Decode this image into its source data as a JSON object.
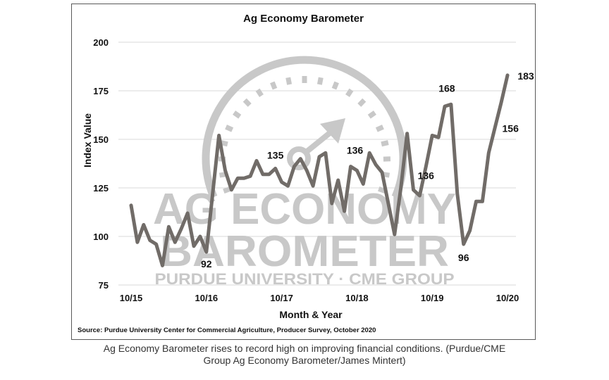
{
  "chart_data": {
    "type": "line",
    "title": "Ag Economy Barometer",
    "xlabel": "Month & Year",
    "ylabel": "Index Value",
    "ylim": [
      75,
      200
    ],
    "yticks": [
      75,
      100,
      125,
      150,
      175,
      200
    ],
    "xtick_labels": [
      "10/15",
      "10/16",
      "10/17",
      "10/18",
      "10/19",
      "10/20"
    ],
    "grid": true,
    "legend": null,
    "series": [
      {
        "name": "Ag Economy Barometer",
        "color": "#716c68",
        "x_start": "10/15",
        "x_end": "10/20",
        "frequency": "monthly",
        "values": [
          116,
          97,
          106,
          98,
          96,
          85,
          105,
          97,
          104,
          112,
          95,
          100,
          92,
          122,
          152,
          134,
          124,
          130,
          130,
          131,
          139,
          132,
          132,
          135,
          128,
          126,
          136,
          140,
          134,
          126,
          141,
          143,
          117,
          129,
          113,
          136,
          134,
          127,
          143,
          137,
          133,
          117,
          101,
          125,
          153,
          124,
          121,
          136,
          152,
          151,
          167,
          168,
          122,
          96,
          103,
          118,
          118,
          143,
          156,
          169,
          183
        ]
      }
    ],
    "annotations": [
      {
        "label": "92",
        "index": 12
      },
      {
        "label": "135",
        "index": 23
      },
      {
        "label": "136",
        "index": 35
      },
      {
        "label": "136",
        "index": 47
      },
      {
        "label": "168",
        "index": 51
      },
      {
        "label": "96",
        "index": 53
      },
      {
        "label": "156",
        "index": 58
      },
      {
        "label": "183",
        "index": 60
      }
    ],
    "watermark": {
      "line1": "AG ECONOMY",
      "line2": "BAROMETER",
      "line3": "PURDUE UNIVERSITY  ·  CME GROUP"
    },
    "source": "Source: Purdue University Center for Commercial Agriculture, Producer Survey, October 2020"
  },
  "caption": {
    "line1": "Ag Economy Barometer rises to record high on improving financial conditions. (Purdue/CME",
    "line2": "Group Ag Economy Barometer/James Mintert)"
  }
}
